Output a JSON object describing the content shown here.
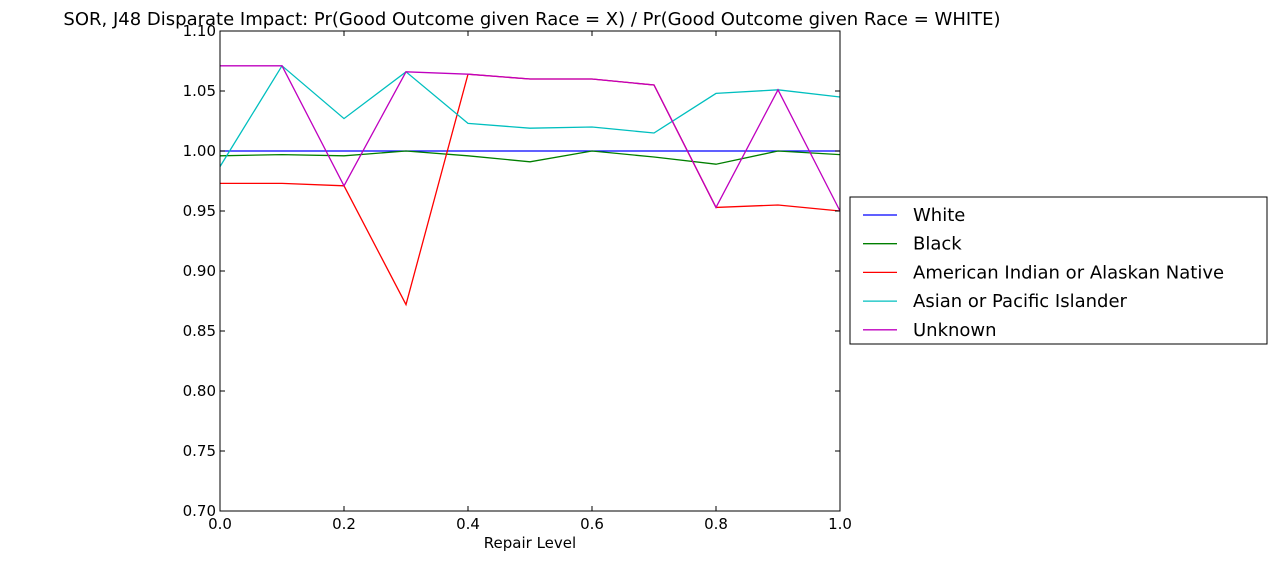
{
  "chart_data": {
    "type": "line",
    "title": "SOR, J48 Disparate Impact: Pr(Good Outcome given Race = X) / Pr(Good Outcome given Race = WHITE)",
    "xlabel": "Repair Level",
    "ylabel": "",
    "xlim": [
      0.0,
      1.0
    ],
    "ylim": [
      0.7,
      1.1
    ],
    "x_ticks": [
      "0.0",
      "0.2",
      "0.4",
      "0.6",
      "0.8",
      "1.0"
    ],
    "y_ticks": [
      "0.70",
      "0.75",
      "0.80",
      "0.85",
      "0.90",
      "0.95",
      "1.00",
      "1.05",
      "1.10"
    ],
    "grid": false,
    "legend_position": "outside-right",
    "x": [
      0.0,
      0.1,
      0.2,
      0.3,
      0.4,
      0.5,
      0.6,
      0.7,
      0.8,
      0.9,
      1.0
    ],
    "series": [
      {
        "name": "White",
        "color": "#0000ff",
        "values": [
          1.0,
          1.0,
          1.0,
          1.0,
          1.0,
          1.0,
          1.0,
          1.0,
          1.0,
          1.0,
          1.0
        ]
      },
      {
        "name": "Black",
        "color": "#007f00",
        "values": [
          0.996,
          0.997,
          0.996,
          1.0,
          0.996,
          0.991,
          1.0,
          0.995,
          0.989,
          1.0,
          0.997
        ]
      },
      {
        "name": "American Indian or Alaskan Native",
        "color": "#ff0000",
        "values": [
          0.973,
          0.973,
          0.971,
          0.872,
          1.064,
          1.06,
          1.06,
          1.055,
          0.953,
          0.955,
          0.95
        ]
      },
      {
        "name": "Asian or Pacific Islander",
        "color": "#00bfbf",
        "values": [
          0.987,
          1.071,
          1.027,
          1.066,
          1.023,
          1.019,
          1.02,
          1.015,
          1.048,
          1.051,
          1.045
        ]
      },
      {
        "name": "Unknown",
        "color": "#bf00bf",
        "values": [
          1.071,
          1.071,
          0.971,
          1.066,
          1.064,
          1.06,
          1.06,
          1.055,
          0.953,
          1.051,
          0.95
        ]
      }
    ]
  }
}
